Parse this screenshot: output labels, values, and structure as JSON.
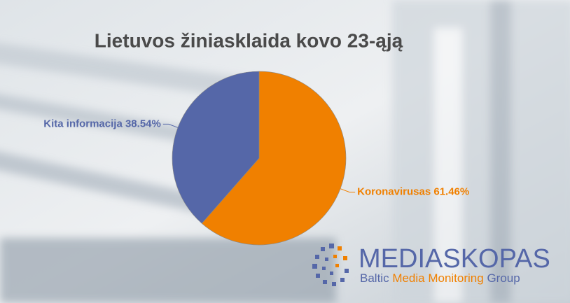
{
  "chart_data": {
    "type": "pie",
    "title": "Lietuvos žiniasklaida kovo 23-ąją",
    "categories": [
      "Koronavirusas",
      "Kita informacija"
    ],
    "values": [
      61.46,
      38.54
    ],
    "value_labels": [
      "61.46%",
      "38.54%"
    ],
    "colors": [
      "#f08000",
      "#5567a8"
    ]
  },
  "logo": {
    "name": "MEDIASKOPAS",
    "tagline": [
      "Baltic",
      "Media Monitoring",
      "Group"
    ]
  }
}
